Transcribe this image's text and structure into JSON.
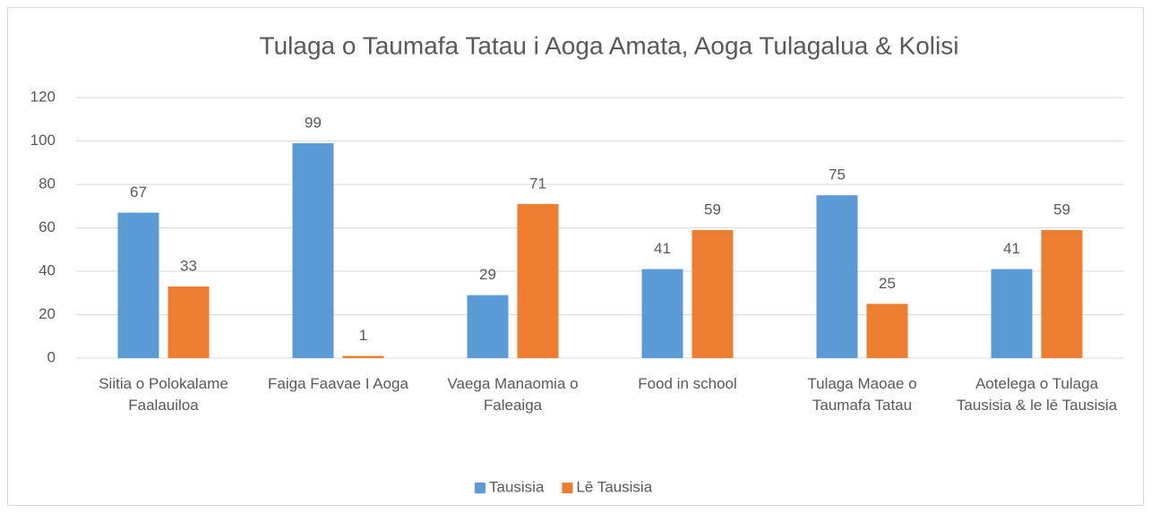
{
  "chart_data": {
    "type": "bar",
    "title": "Tulaga o Taumafa Tatau i Aoga Amata, Aoga Tulagalua & Kolisi",
    "categories": [
      "Siitia o Polokalame Faalauiloa",
      "Faiga Faavae I Aoga",
      "Vaega Manaomia o Faleaiga",
      "Food in school",
      "Tulaga Maoae o Taumafa Tatau",
      "Aotelega o Tulaga Tausisia & le lē Tausisia"
    ],
    "series": [
      {
        "name": "Tausisia",
        "color": "#5b9bd5",
        "values": [
          67,
          99,
          29,
          41,
          75,
          41
        ]
      },
      {
        "name": "Lē Tausisia",
        "color": "#ed7d31",
        "values": [
          33,
          1,
          71,
          59,
          25,
          59
        ]
      }
    ],
    "ylim": [
      0,
      120
    ],
    "yticks": [
      0,
      20,
      40,
      60,
      80,
      100,
      120
    ],
    "grid": true,
    "legend": "bottom"
  }
}
